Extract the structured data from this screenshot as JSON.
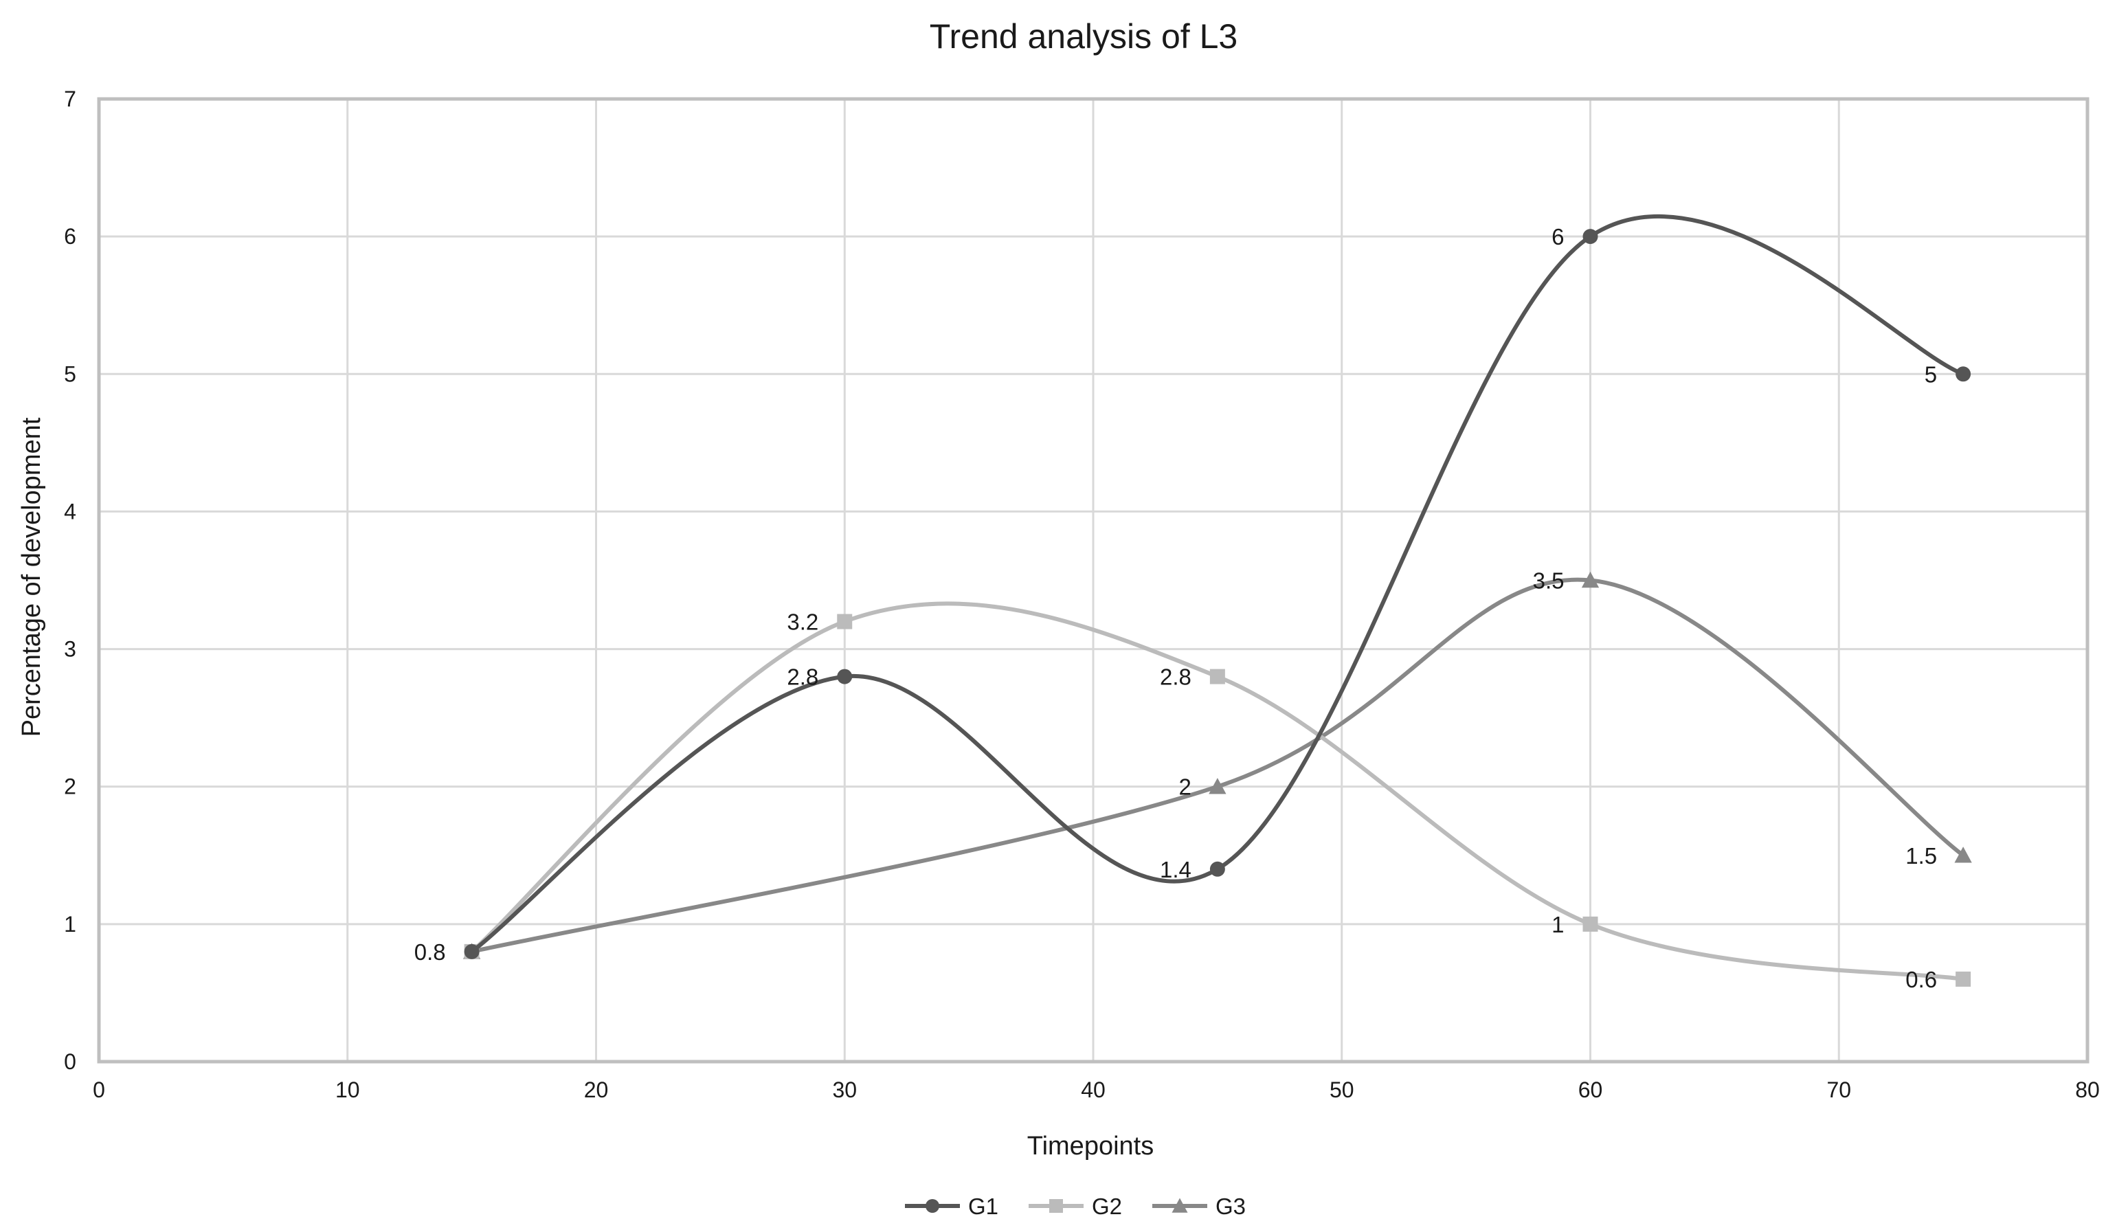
{
  "chart_data": {
    "type": "line",
    "title": "Trend analysis of L3",
    "xlabel": "Timepoints",
    "ylabel": "Percentage of development",
    "xlim": [
      0,
      80
    ],
    "ylim": [
      0,
      7
    ],
    "xticks": [
      0,
      10,
      20,
      30,
      40,
      50,
      60,
      70,
      80
    ],
    "yticks": [
      0,
      1,
      2,
      3,
      4,
      5,
      6,
      7
    ],
    "xtick_labels": [
      "0",
      "10",
      "20",
      "30",
      "40",
      "50",
      "60",
      "70",
      "80"
    ],
    "ytick_labels": [
      "0",
      "1",
      "2",
      "3",
      "4",
      "5",
      "6",
      "7"
    ],
    "grid": true,
    "smooth": true,
    "legend_position": "bottom",
    "series": [
      {
        "name": "G1",
        "marker": "circle",
        "color": "#555555",
        "x": [
          15,
          30,
          45,
          60,
          75
        ],
        "values": [
          0.8,
          2.8,
          1.4,
          6,
          5
        ],
        "labels": [
          "0.8",
          "2.8",
          "1.4",
          "6",
          "5"
        ]
      },
      {
        "name": "G2",
        "marker": "square",
        "color": "#bbbbbb",
        "x": [
          15,
          30,
          45,
          60,
          75
        ],
        "values": [
          0.8,
          3.2,
          2.8,
          1,
          0.6
        ],
        "labels": [
          "",
          "3.2",
          "2.8",
          "1",
          "0.6"
        ]
      },
      {
        "name": "G3",
        "marker": "triangle",
        "color": "#888888",
        "x": [
          15,
          45,
          60,
          75
        ],
        "values": [
          0.8,
          2,
          3.5,
          1.5
        ],
        "labels": [
          "",
          "2",
          "3.5",
          "1.5"
        ]
      }
    ]
  }
}
